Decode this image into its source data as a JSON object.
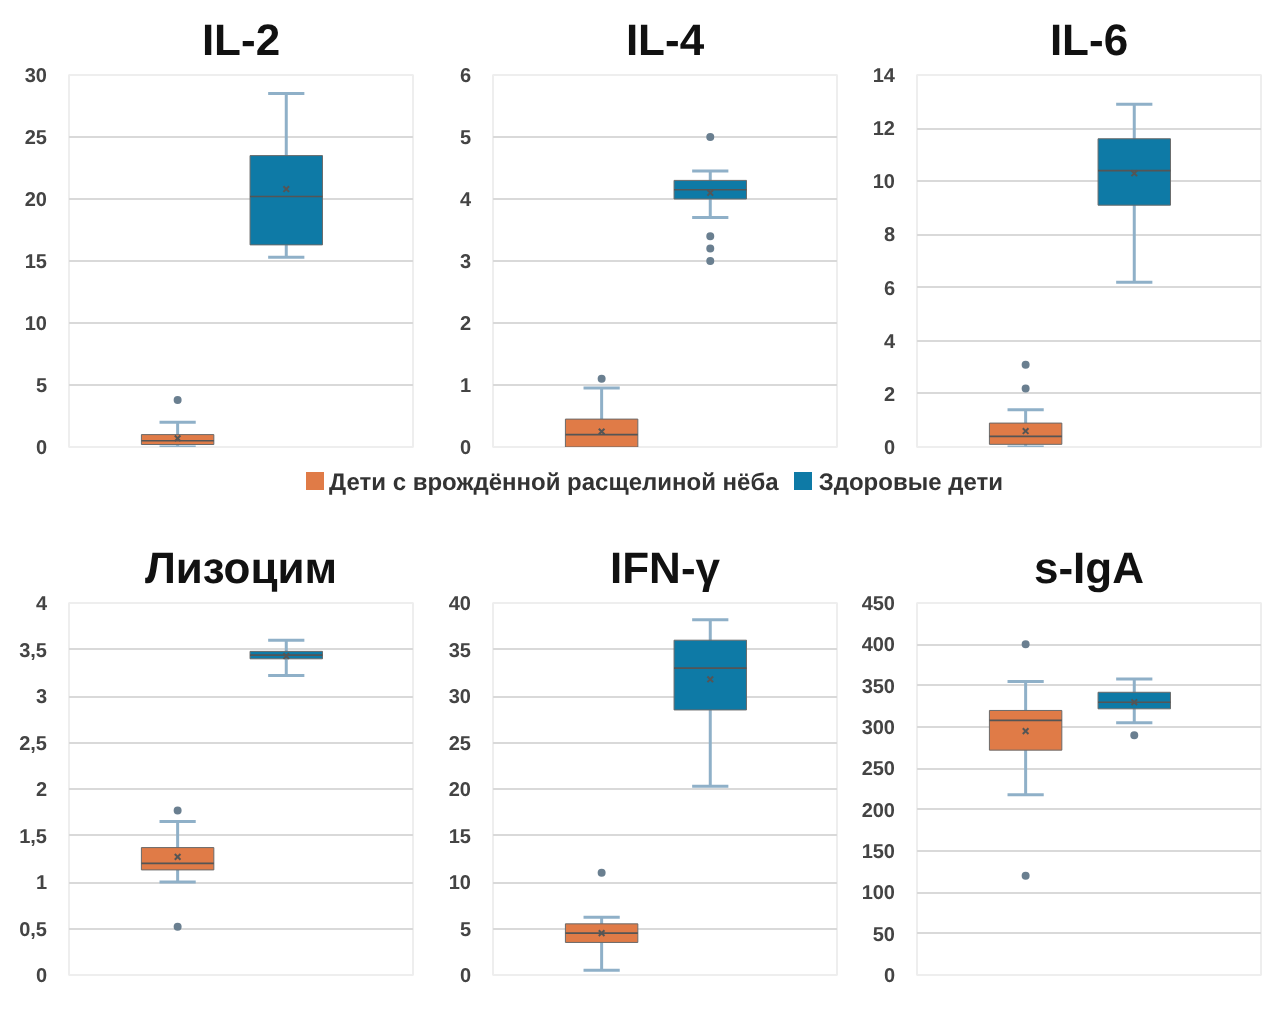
{
  "chart_data": [
    {
      "type": "box",
      "title": "IL-2",
      "categories": [
        null
      ],
      "ylim": [
        0,
        30
      ],
      "yticks": [
        0,
        5,
        10,
        15,
        20,
        25,
        30
      ],
      "grid": "y",
      "legend": "bottom",
      "series": [
        {
          "name": "Дети с врождённой расщелиной нёба",
          "color": "#e07b47",
          "boxes": [
            {
              "low": 0,
              "q1": 0.2,
              "median": 0.5,
              "q3": 1,
              "high": 2,
              "mean": 0.7,
              "outliers": [
                3.8
              ]
            }
          ]
        },
        {
          "name": "Здоровые дети",
          "color": "#0e7aa6",
          "boxes": [
            {
              "low": 15.3,
              "q1": 16.3,
              "median": 20.2,
              "q3": 23.5,
              "high": 28.5,
              "mean": 20.8
            }
          ]
        }
      ]
    },
    {
      "type": "box",
      "title": "IL-4",
      "categories": [
        null
      ],
      "ylim": [
        0,
        6
      ],
      "yticks": [
        0,
        1,
        2,
        3,
        4,
        5,
        6
      ],
      "grid": "y",
      "series": [
        {
          "color": "#e07b47",
          "boxes": [
            {
              "low": 0,
              "q1": 0,
              "median": 0.2,
              "q3": 0.45,
              "high": 0.95,
              "mean": 0.25,
              "outliers": [
                1.1
              ]
            }
          ]
        },
        {
          "color": "#0e7aa6",
          "boxes": [
            {
              "low": 3.7,
              "q1": 4.0,
              "median": 4.15,
              "q3": 4.3,
              "high": 4.45,
              "mean": 4.1,
              "outliers": [
                5.0,
                3.4,
                3.2,
                3.0
              ]
            }
          ]
        }
      ]
    },
    {
      "type": "box",
      "title": "IL-6",
      "categories": [
        null
      ],
      "ylim": [
        0,
        14
      ],
      "yticks": [
        0,
        2,
        4,
        6,
        8,
        10,
        12,
        14
      ],
      "grid": "y",
      "series": [
        {
          "color": "#e07b47",
          "boxes": [
            {
              "low": 0,
              "q1": 0.1,
              "median": 0.4,
              "q3": 0.9,
              "high": 1.4,
              "mean": 0.6,
              "outliers": [
                2.2,
                3.1
              ]
            }
          ]
        },
        {
          "color": "#0e7aa6",
          "boxes": [
            {
              "low": 6.2,
              "q1": 9.1,
              "median": 10.4,
              "q3": 11.6,
              "high": 12.9,
              "mean": 10.3
            }
          ]
        }
      ]
    },
    {
      "type": "box",
      "title": "Лизоцим",
      "categories": [
        null
      ],
      "ylim": [
        0,
        4
      ],
      "yticks": [
        0,
        {
          "value": 0.5,
          "label": "0,5"
        },
        1,
        {
          "value": 1.5,
          "label": "1,5"
        },
        2,
        {
          "value": 2.5,
          "label": "2,5"
        },
        3,
        {
          "value": 3.5,
          "label": "3,5"
        },
        4
      ],
      "grid": "y",
      "series": [
        {
          "color": "#e07b47",
          "boxes": [
            {
              "low": 1.0,
              "q1": 1.13,
              "median": 1.2,
              "q3": 1.37,
              "high": 1.65,
              "mean": 1.27,
              "outliers": [
                1.77,
                0.52
              ]
            }
          ]
        },
        {
          "color": "#0e7aa6",
          "boxes": [
            {
              "low": 3.22,
              "q1": 3.4,
              "median": 3.44,
              "q3": 3.48,
              "high": 3.6,
              "mean": 3.43
            }
          ]
        }
      ]
    },
    {
      "type": "box",
      "title": "IFN-γ",
      "categories": [
        null
      ],
      "ylim": [
        0,
        40
      ],
      "yticks": [
        0,
        5,
        10,
        15,
        20,
        25,
        30,
        35,
        40
      ],
      "grid": "y",
      "series": [
        {
          "color": "#e07b47",
          "boxes": [
            {
              "low": 0.5,
              "q1": 3.5,
              "median": 4.5,
              "q3": 5.5,
              "high": 6.2,
              "mean": 4.5,
              "outliers": [
                11
              ]
            }
          ]
        },
        {
          "color": "#0e7aa6",
          "boxes": [
            {
              "low": 20.3,
              "q1": 28.5,
              "median": 33,
              "q3": 36,
              "high": 38.2,
              "mean": 31.8
            }
          ]
        }
      ]
    },
    {
      "type": "box",
      "title": "s-IgA",
      "categories": [
        null
      ],
      "ylim": [
        0,
        450
      ],
      "yticks": [
        0,
        50,
        100,
        150,
        200,
        250,
        300,
        350,
        400,
        450
      ],
      "grid": "y",
      "series": [
        {
          "color": "#e07b47",
          "boxes": [
            {
              "low": 218,
              "q1": 272,
              "median": 308,
              "q3": 320,
              "high": 355,
              "mean": 295,
              "outliers": [
                400,
                120
              ]
            }
          ]
        },
        {
          "color": "#0e7aa6",
          "boxes": [
            {
              "low": 305,
              "q1": 322,
              "median": 330,
              "q3": 342,
              "high": 358,
              "mean": 330,
              "outliers": [
                290
              ]
            }
          ]
        }
      ]
    }
  ]
}
